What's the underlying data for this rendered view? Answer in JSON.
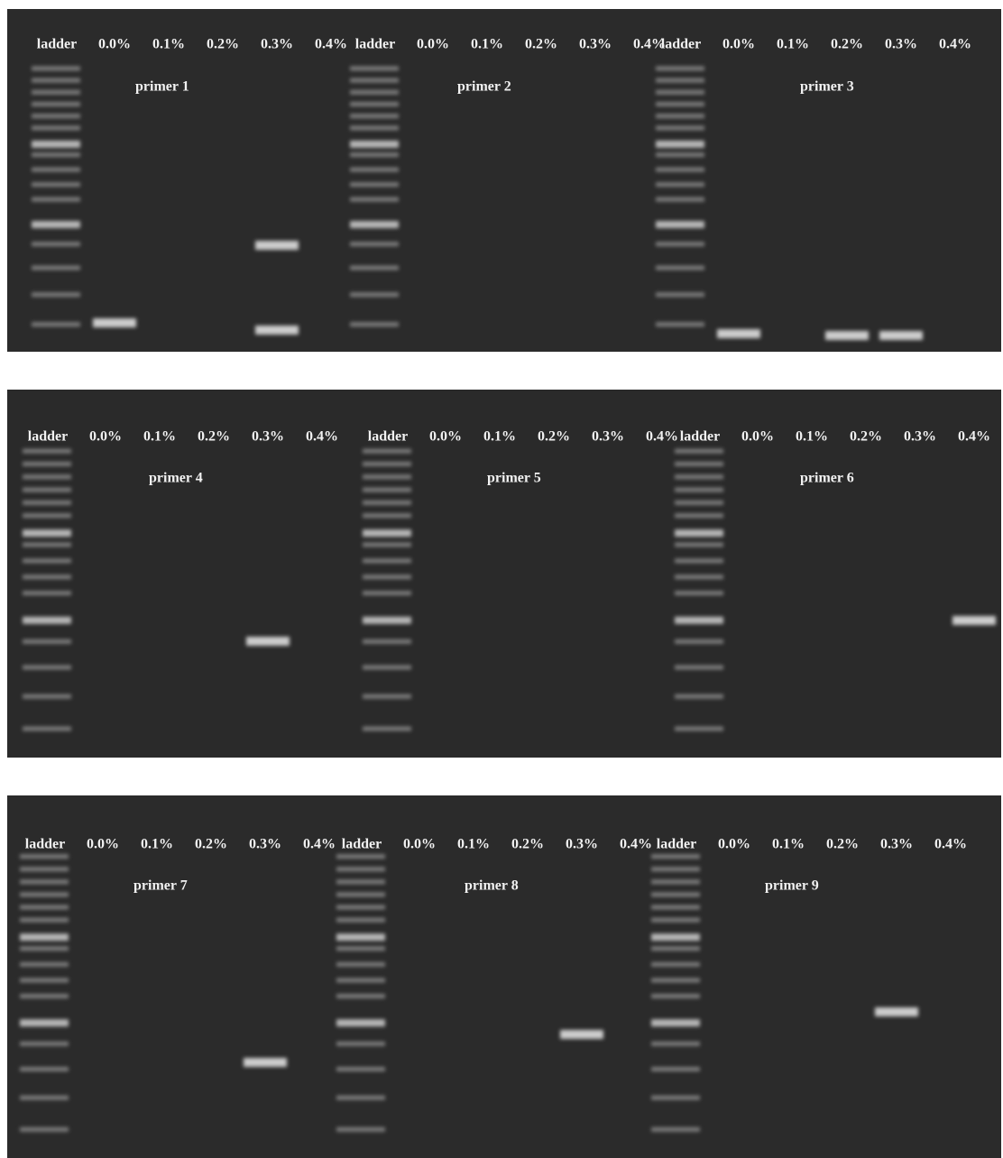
{
  "panels": [
    {
      "groups": [
        {
          "primer": "primer 1",
          "lanes": [
            "ladder",
            "0.0%",
            "0.1%",
            "0.2%",
            "0.3%",
            "0.4%"
          ]
        },
        {
          "primer": "primer 2",
          "lanes": [
            "ladder",
            "0.0%",
            "0.1%",
            "0.2%",
            "0.3%",
            "0.4%"
          ]
        },
        {
          "primer": "primer 3",
          "lanes": [
            "ladder",
            "0.0%",
            "0.1%",
            "0.2%",
            "0.3%",
            "0.4%"
          ]
        }
      ]
    },
    {
      "groups": [
        {
          "primer": "primer 4",
          "lanes": [
            "ladder",
            "0.0%",
            "0.1%",
            "0.2%",
            "0.3%",
            "0.4%"
          ]
        },
        {
          "primer": "primer 5",
          "lanes": [
            "ladder",
            "0.0%",
            "0.1%",
            "0.2%",
            "0.3%",
            "0.4%"
          ]
        },
        {
          "primer": "primer 6",
          "lanes": [
            "ladder",
            "0.0%",
            "0.1%",
            "0.2%",
            "0.3%",
            "0.4%"
          ]
        }
      ]
    },
    {
      "groups": [
        {
          "primer": "primer 7",
          "lanes": [
            "ladder",
            "0.0%",
            "0.1%",
            "0.2%",
            "0.3%",
            "0.4%"
          ]
        },
        {
          "primer": "primer 8",
          "lanes": [
            "ladder",
            "0.0%",
            "0.1%",
            "0.2%",
            "0.3%",
            "0.4%"
          ]
        },
        {
          "primer": "primer 9",
          "lanes": [
            "ladder",
            "0.0%",
            "0.1%",
            "0.2%",
            "0.3%",
            "0.4%"
          ]
        }
      ]
    }
  ]
}
